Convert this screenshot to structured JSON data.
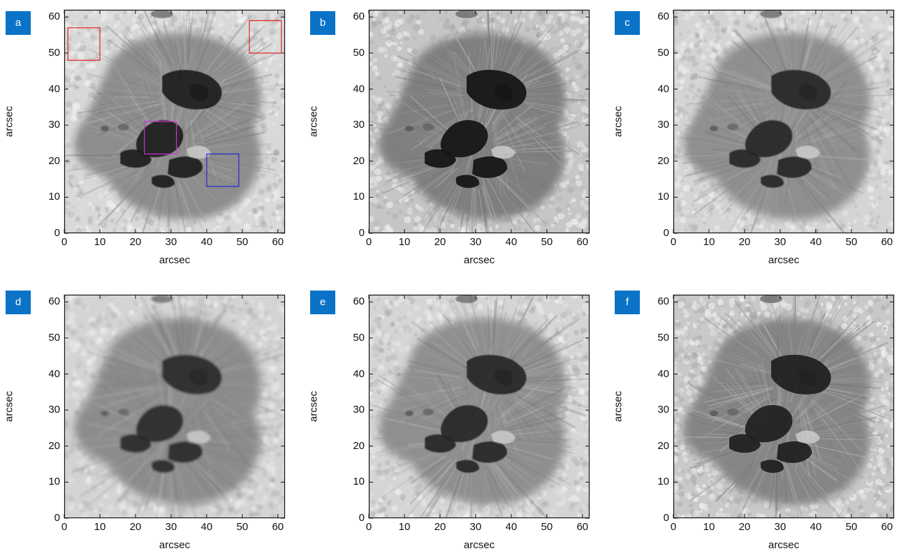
{
  "figure": {
    "x_range": [
      0,
      62
    ],
    "y_range": [
      0,
      62
    ],
    "ticks": [
      0,
      10,
      20,
      30,
      40,
      50,
      60
    ],
    "tick_labels": [
      "0",
      "10",
      "20",
      "30",
      "40",
      "50",
      "60"
    ],
    "colormap": "grayscale",
    "panels": [
      {
        "id": "a",
        "label": "a",
        "xlabel": "arcsec",
        "ylabel": "arcsec",
        "style": "sharp",
        "regions": [
          {
            "color": "#e32222",
            "x": [
              1,
              10
            ],
            "y": [
              48,
              57
            ]
          },
          {
            "color": "#e32222",
            "x": [
              52,
              61
            ],
            "y": [
              50,
              59
            ]
          },
          {
            "color": "#d22fd6",
            "x": [
              22.5,
              31.5
            ],
            "y": [
              22,
              31
            ]
          },
          {
            "color": "#2626d6",
            "x": [
              40,
              49
            ],
            "y": [
              13,
              22
            ]
          }
        ]
      },
      {
        "id": "b",
        "label": "b",
        "xlabel": "arcsec",
        "ylabel": "arcsec",
        "style": "contrast",
        "regions": []
      },
      {
        "id": "c",
        "label": "c",
        "xlabel": "arcsec",
        "ylabel": "arcsec",
        "style": "soft",
        "regions": []
      },
      {
        "id": "d",
        "label": "d",
        "xlabel": "arcsec",
        "ylabel": "arcsec",
        "style": "blurred",
        "regions": []
      },
      {
        "id": "e",
        "label": "e",
        "xlabel": "arcsec",
        "ylabel": "arcsec",
        "style": "soft",
        "regions": []
      },
      {
        "id": "f",
        "label": "f",
        "xlabel": "arcsec",
        "ylabel": "arcsec",
        "style": "grainy",
        "regions": []
      }
    ]
  }
}
